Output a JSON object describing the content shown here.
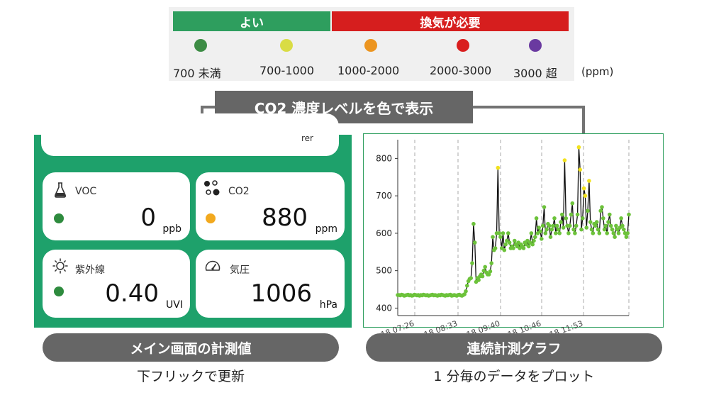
{
  "legend": {
    "good_label": "よい",
    "vent_label": "換気が必要",
    "levels": [
      {
        "label": "700 未満",
        "color": "#3d8c45"
      },
      {
        "label": "700-1000",
        "color": "#d9dc45"
      },
      {
        "label": "1000-2000",
        "color": "#ec9520"
      },
      {
        "label": "2000-3000",
        "color": "#d91e1e"
      },
      {
        "label": "3000 超",
        "color": "#6a3aa0"
      }
    ],
    "unit": "(ppm)"
  },
  "callout": {
    "text": "CO2 濃度レベルを色で表示"
  },
  "phone": {
    "top_card_text": "rer",
    "cards": [
      {
        "title": "VOC",
        "value": "0",
        "unit": "ppb",
        "icon": "flask-icon",
        "status_color": "#2e8b3e"
      },
      {
        "title": "CO2",
        "value": "880",
        "unit": "ppm",
        "icon": "molecule-icon",
        "status_color": "#f2a91e"
      },
      {
        "title": "紫外線",
        "value": "0.40",
        "unit": "UVI",
        "icon": "sun-icon",
        "status_color": "#2e8b3e"
      },
      {
        "title": "気圧",
        "value": "1006",
        "unit": "hPa",
        "icon": "gauge-icon",
        "status_color": null
      }
    ]
  },
  "chart_data": {
    "type": "line",
    "x_tick_labels": [
      "18 07:26",
      "18 08:33",
      "18 09:40",
      "18 10:46",
      "18 11:53"
    ],
    "y_ticks": [
      400,
      500,
      600,
      700,
      800
    ],
    "ylim": [
      380,
      850
    ],
    "grid": "vertical-dashed",
    "series": [
      {
        "values": [
          435,
          435,
          434,
          436,
          435,
          433,
          434,
          435,
          436,
          434,
          435,
          433,
          434,
          436,
          435,
          434,
          435,
          433,
          435,
          434,
          436,
          435,
          434,
          435,
          433,
          434,
          435,
          436,
          434,
          435,
          434,
          433,
          435,
          434,
          436,
          435,
          434,
          433,
          435,
          434,
          435,
          436,
          433,
          434,
          435,
          434,
          433,
          435,
          436,
          434,
          433,
          435,
          437,
          445,
          460,
          472,
          478,
          480,
          520,
          625,
          575,
          470,
          480,
          475,
          485,
          490,
          485,
          500,
          510,
          495,
          490,
          490,
          498,
          520,
          590,
          555,
          560,
          600,
          775,
          600,
          590,
          560,
          600,
          555,
          570,
          580,
          600,
          575,
          560,
          565,
          560,
          580,
          570,
          565,
          575,
          560,
          570,
          565,
          560,
          575,
          570,
          580,
          565,
          575,
          600,
          570,
          580,
          590,
          640,
          600,
          615,
          605,
          585,
          620,
          670,
          600,
          610,
          625,
          620,
          590,
          610,
          620,
          640,
          600,
          620,
          610,
          600,
          630,
          650,
          615,
          795,
          640,
          620,
          600,
          620,
          650,
          680,
          610,
          600,
          620,
          650,
          830,
          770,
          610,
          640,
          720,
          700,
          615,
          660,
          740,
          630,
          610,
          600,
          625,
          620,
          630,
          610,
          600,
          660,
          670,
          640,
          610,
          620,
          600,
          630,
          650,
          620,
          610,
          600,
          590,
          620,
          610,
          600,
          615,
          640,
          620,
          610,
          600,
          590,
          600,
          650
        ]
      }
    ]
  },
  "labels": {
    "main_pill": "メイン画面の計測値",
    "main_sub": "下フリックで更新",
    "chart_pill": "連続計測グラフ",
    "chart_sub": "1 分毎のデータをプロット"
  }
}
